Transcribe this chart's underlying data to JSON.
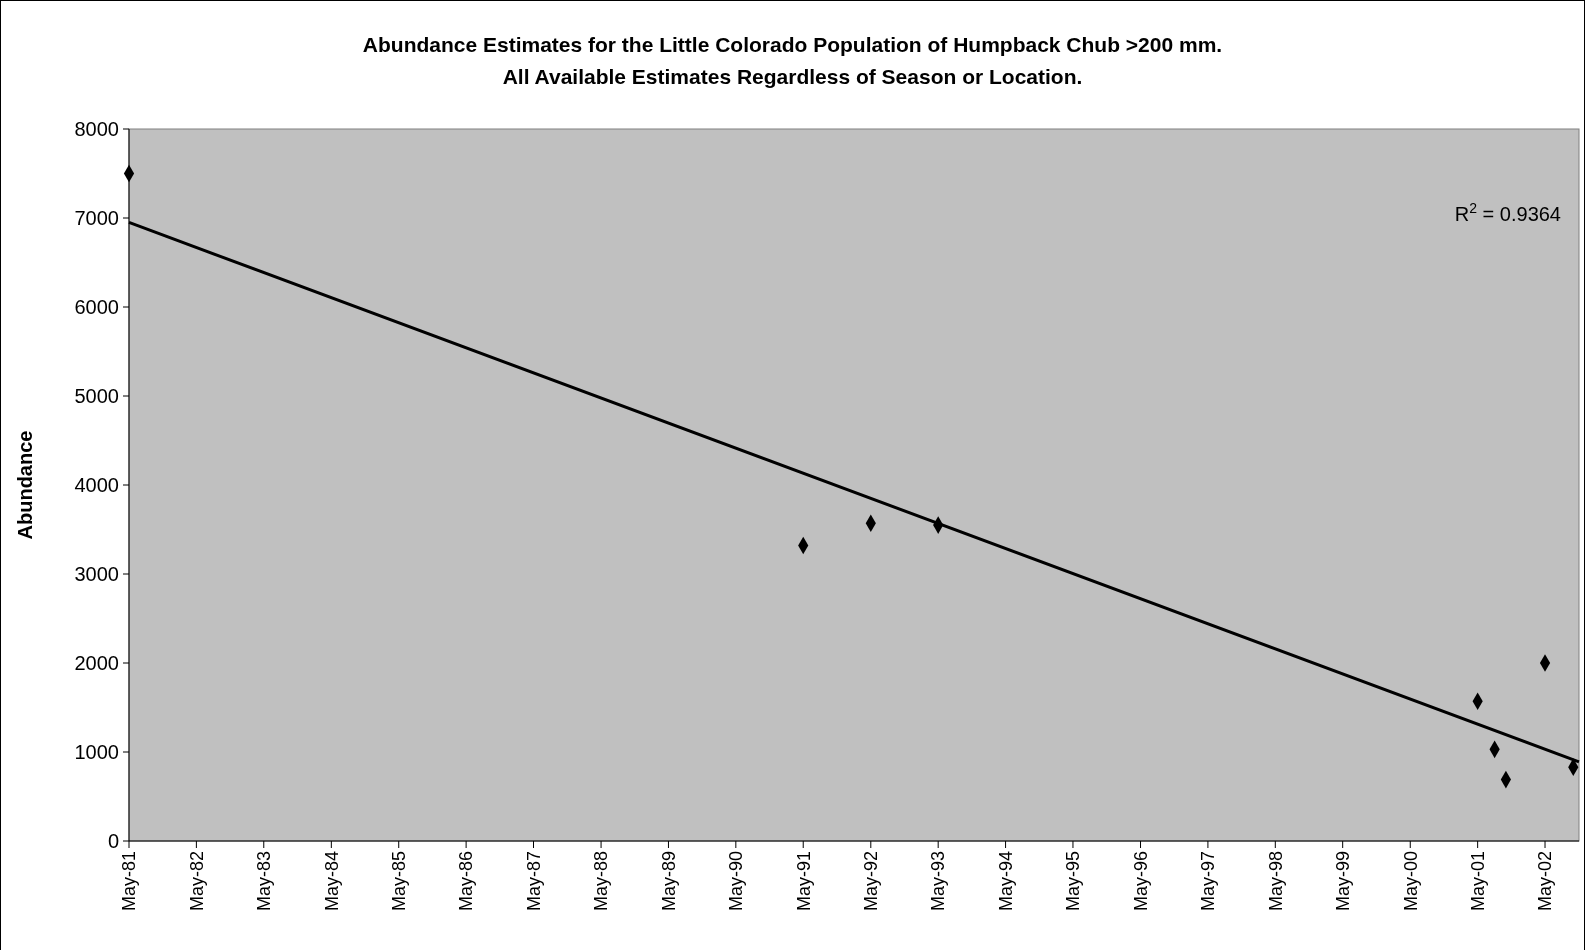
{
  "chart_data": {
    "type": "scatter",
    "title": "Abundance Estimates for the Little Colorado Population of Humpback Chub >200 mm.\nAll Available Estimates Regardless of Season or Location.",
    "ylabel": "Abundance",
    "xlim": [
      "1981-05",
      "2002-11"
    ],
    "xticks": [
      {
        "value": "1981-05",
        "label": "May-81"
      },
      {
        "value": "1982-05",
        "label": "May-82"
      },
      {
        "value": "1983-05",
        "label": "May-83"
      },
      {
        "value": "1984-05",
        "label": "May-84"
      },
      {
        "value": "1985-05",
        "label": "May-85"
      },
      {
        "value": "1986-05",
        "label": "May-86"
      },
      {
        "value": "1987-05",
        "label": "May-87"
      },
      {
        "value": "1988-05",
        "label": "May-88"
      },
      {
        "value": "1989-05",
        "label": "May-89"
      },
      {
        "value": "1990-05",
        "label": "May-90"
      },
      {
        "value": "1991-05",
        "label": "May-91"
      },
      {
        "value": "1992-05",
        "label": "May-92"
      },
      {
        "value": "1993-05",
        "label": "May-93"
      },
      {
        "value": "1994-05",
        "label": "May-94"
      },
      {
        "value": "1995-05",
        "label": "May-95"
      },
      {
        "value": "1996-05",
        "label": "May-96"
      },
      {
        "value": "1997-05",
        "label": "May-97"
      },
      {
        "value": "1998-05",
        "label": "May-98"
      },
      {
        "value": "1999-05",
        "label": "May-99"
      },
      {
        "value": "2000-05",
        "label": "May-00"
      },
      {
        "value": "2001-05",
        "label": "May-01"
      },
      {
        "value": "2002-05",
        "label": "May-02"
      }
    ],
    "ylim": [
      0,
      8000
    ],
    "yticks": [
      0,
      1000,
      2000,
      3000,
      4000,
      5000,
      6000,
      7000,
      8000
    ],
    "grid": false,
    "series": [
      {
        "color": "#000000",
        "marker": "diamond",
        "x": [
          "1981-05",
          "1991-05",
          "1992-05",
          "1993-05",
          "2001-05",
          "2001-08",
          "2001-10",
          "2002-05",
          "2002-10"
        ],
        "values": [
          7500,
          3320,
          3570,
          3550,
          1570,
          1030,
          690,
          2000,
          830
        ]
      },
      {
        "type": "line",
        "color": "#000000",
        "marker": "none",
        "line_style": "solid",
        "x": [
          "1981-05",
          "2002-11"
        ],
        "values": [
          6950,
          890
        ]
      }
    ],
    "annotations": [
      "R$^{2}$ = 0.9364"
    ]
  }
}
